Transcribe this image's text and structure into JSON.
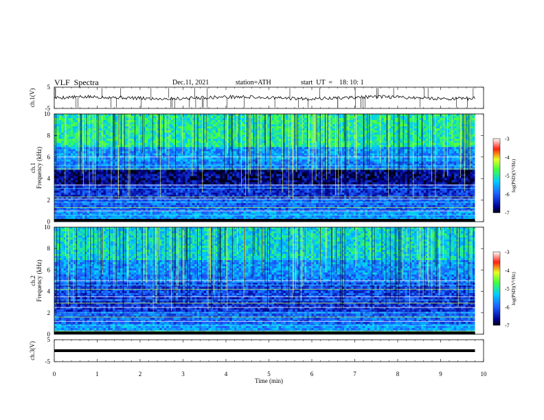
{
  "header": {
    "title": "VLF  Spectra",
    "date": "Dec.11, 2021",
    "station": "station=ATH",
    "start": "start  UT  =    18: 10: 1"
  },
  "chart_data": [
    {
      "type": "line",
      "ylabel": "ch.1(V)",
      "ylim": [
        -5,
        5
      ],
      "yticks": [
        "5",
        "-5"
      ],
      "xlim": [
        0,
        10
      ],
      "description_series": [
        {
          "x": [
            0,
            9.8
          ],
          "y": [
            0,
            0
          ]
        }
      ],
      "grid": false
    },
    {
      "type": "heatmap",
      "ylabel_top": "ch.1",
      "ylabel": "Frequency  (kHz)",
      "ylim": [
        0,
        10
      ],
      "yticks": [
        "0",
        "2",
        "4",
        "6",
        "8",
        "10"
      ],
      "xlim": [
        0,
        10
      ],
      "data_extent_x": [
        0,
        9.8
      ],
      "colorbar": {
        "label": "log(PSD)(V²/Hz)",
        "range": [
          -7,
          -3
        ],
        "ticks": [
          "-3",
          "-4",
          "-5",
          "-6",
          "-7"
        ]
      }
    },
    {
      "type": "heatmap",
      "ylabel_top": "ch.2",
      "ylabel": "Frequency  (kHz)",
      "ylim": [
        0,
        10
      ],
      "yticks": [
        "0",
        "2",
        "4",
        "6",
        "8",
        "10"
      ],
      "xlim": [
        0,
        10
      ],
      "data_extent_x": [
        0,
        9.8
      ],
      "colorbar": {
        "label": "log(PSD)(V²/Hz)",
        "range": [
          -7,
          -3
        ],
        "ticks": [
          "-3",
          "-4",
          "-5",
          "-6",
          "-7"
        ]
      }
    },
    {
      "type": "line",
      "ylabel": "ch.3(V)",
      "ylim": [
        -5,
        5
      ],
      "yticks": [
        "5",
        "-5"
      ],
      "xlim": [
        0,
        10
      ],
      "xlabel": "Time  (min)",
      "xticks": [
        "0",
        "1",
        "2",
        "3",
        "4",
        "5",
        "6",
        "7",
        "8",
        "9",
        "10"
      ],
      "series": [
        {
          "x": [
            0,
            9.8
          ],
          "y": [
            0,
            0
          ]
        }
      ]
    }
  ]
}
